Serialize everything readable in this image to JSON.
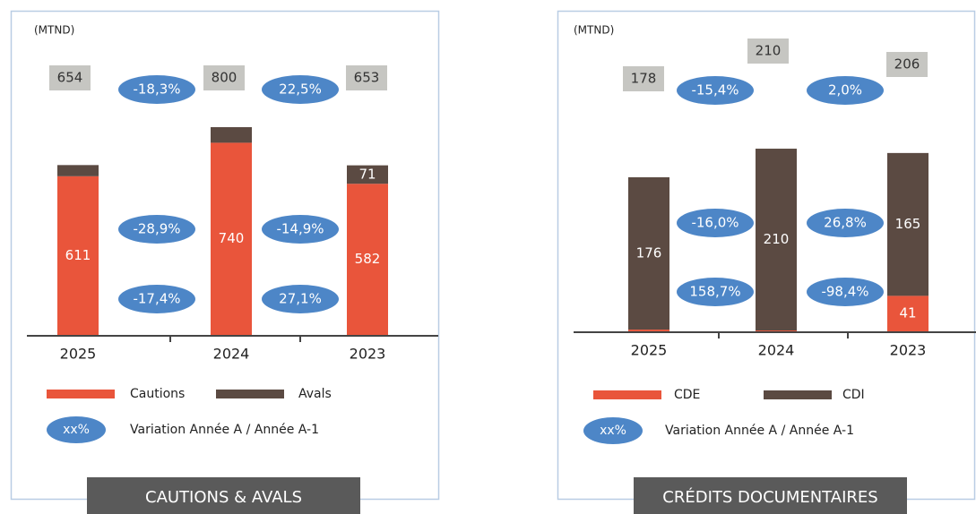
{
  "chart_data": [
    {
      "type": "bar",
      "title": "CAUTIONS & AVALS",
      "unit": "(MTND)",
      "categories": [
        "2025",
        "2024",
        "2023"
      ],
      "series": [
        {
          "name": "Cautions",
          "color": "#e9553b",
          "values": [
            611,
            740,
            582
          ]
        },
        {
          "name": "Avals",
          "color": "#5b4a42",
          "values": [
            43,
            60,
            71
          ]
        }
      ],
      "totals": [
        654,
        800,
        653
      ],
      "variations": [
        [
          "-18,3%",
          "22,5%"
        ],
        [
          "-28,9%",
          "-14,9%"
        ],
        [
          "-17,4%",
          "27,1%"
        ]
      ],
      "variation_legend": {
        "symbol": "xx%",
        "text": "Variation Année A / Année A-1"
      },
      "ylim": [
        0,
        1000
      ]
    },
    {
      "type": "bar",
      "title": "CRÉDITS DOCUMENTAIRES",
      "unit": "(MTND)",
      "categories": [
        "2025",
        "2024",
        "2023"
      ],
      "series": [
        {
          "name": "CDE",
          "color": "#e9553b",
          "values": [
            2,
            1,
            41
          ]
        },
        {
          "name": "CDI",
          "color": "#5b4a42",
          "values": [
            176,
            210,
            165
          ]
        }
      ],
      "totals": [
        178,
        210,
        206
      ],
      "variations": [
        [
          "-15,4%",
          "2,0%"
        ],
        [
          "-16,0%",
          "26,8%"
        ],
        [
          "158,7%",
          "-98,4%"
        ]
      ],
      "variation_legend": {
        "symbol": "xx%",
        "text": "Variation Année A / Année A-1"
      },
      "ylim": [
        0,
        300
      ]
    }
  ]
}
